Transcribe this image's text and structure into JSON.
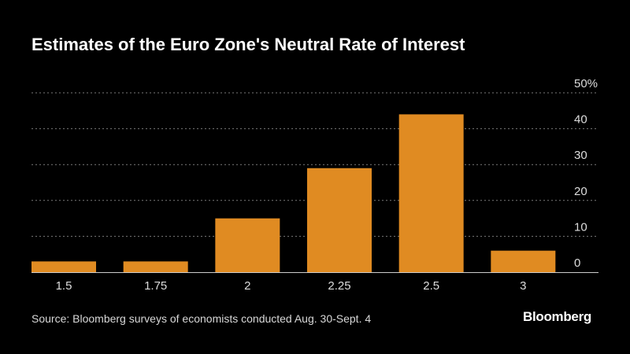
{
  "title": "Estimates of the Euro Zone's Neutral Rate of Interest",
  "source": "Source: Bloomberg surveys of economists conducted Aug. 30-Sept. 4",
  "brand": "Bloomberg",
  "colors": {
    "background": "#000000",
    "bar": "#e08b22",
    "grid": "#7a7a7a",
    "text": "#dddddd"
  },
  "chart_data": {
    "type": "bar",
    "title": "Estimates of the Euro Zone's Neutral Rate of Interest",
    "xlabel": "",
    "ylabel": "",
    "categories": [
      "1.5",
      "1.75",
      "2",
      "2.25",
      "2.5",
      "3"
    ],
    "values": [
      3,
      3,
      15,
      29,
      44,
      6
    ],
    "ylim": [
      0,
      50
    ],
    "y_ticks": [
      0,
      10,
      20,
      30,
      40,
      50
    ],
    "y_tick_labels": [
      "0",
      "10",
      "20",
      "30",
      "40",
      "50%"
    ],
    "y_axis_position": "right",
    "grid": true,
    "legend": "none"
  }
}
